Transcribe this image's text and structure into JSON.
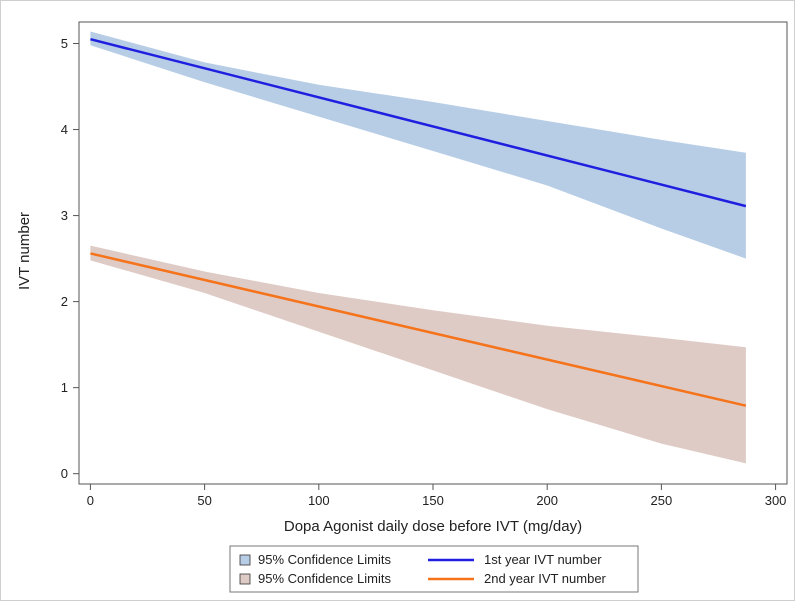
{
  "chart_data": {
    "type": "line",
    "xlabel": "Dopa Agonist daily dose before IVT (mg/day)",
    "ylabel": "IVT number",
    "xlim": [
      -5,
      305
    ],
    "ylim": [
      -0.12,
      5.25
    ],
    "x_ticks": [
      0,
      50,
      100,
      150,
      200,
      250,
      300
    ],
    "y_ticks": [
      0,
      1,
      2,
      3,
      4,
      5
    ],
    "grid": false,
    "legend_position": "bottom",
    "series": [
      {
        "name": "1st year IVT number",
        "color": "#1f1fe0",
        "x": [
          0,
          287
        ],
        "y": [
          5.05,
          3.11
        ],
        "band": {
          "name": "95% Confidence Limits",
          "color": "#b7cde6",
          "x": [
            0,
            50,
            100,
            150,
            200,
            250,
            287
          ],
          "lower": [
            4.98,
            4.55,
            4.15,
            3.75,
            3.35,
            2.85,
            2.5
          ],
          "upper": [
            5.14,
            4.78,
            4.52,
            4.32,
            4.1,
            3.88,
            3.73
          ]
        }
      },
      {
        "name": "2nd year IVT number",
        "color": "#f5731a",
        "x": [
          0,
          287
        ],
        "y": [
          2.56,
          0.79
        ],
        "band": {
          "name": "95% Confidence Limits",
          "color": "#dfcbc5",
          "x": [
            0,
            50,
            100,
            150,
            200,
            250,
            287
          ],
          "lower": [
            2.48,
            2.1,
            1.65,
            1.2,
            0.75,
            0.35,
            0.12
          ],
          "upper": [
            2.65,
            2.35,
            2.1,
            1.9,
            1.72,
            1.58,
            1.47
          ]
        }
      }
    ]
  }
}
